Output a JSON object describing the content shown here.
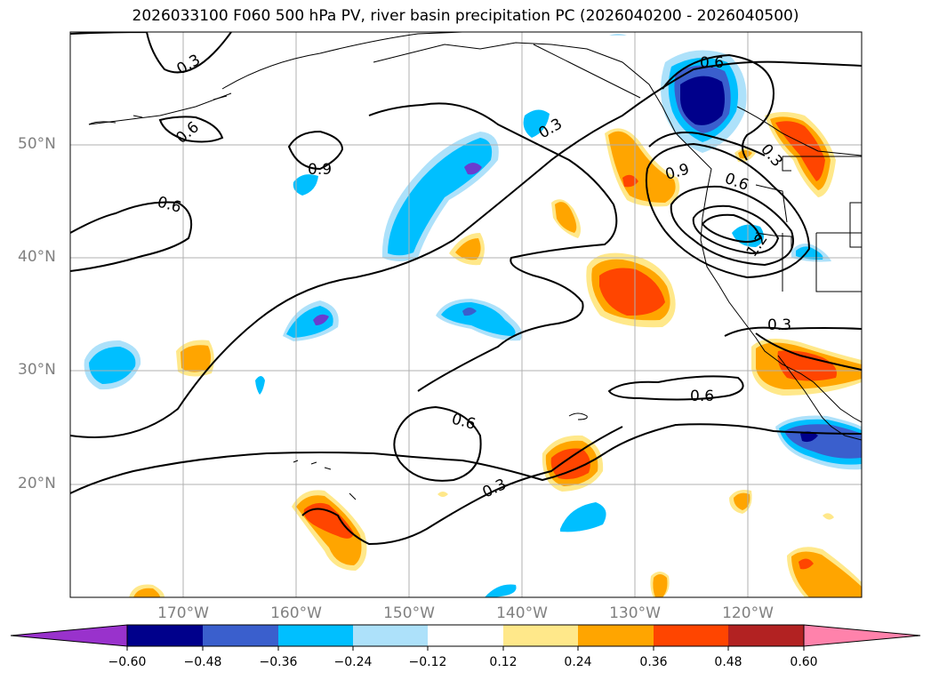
{
  "title": "2026033100 F060 500 hPa PV, river basin precipitation PC (2026040200 - 2026040500)",
  "lat_labels": [
    "50°N",
    "40°N",
    "30°N",
    "20°N"
  ],
  "lon_labels": [
    "170°W",
    "160°W",
    "150°W",
    "140°W",
    "130°W",
    "120°W"
  ],
  "contour_labels": [
    "0.3",
    "0.6",
    "0.6",
    "0.9",
    "0.3",
    "0.6",
    "0.9",
    "0.6",
    "1.2",
    "0.3",
    "0.6",
    "0.6",
    "0.3",
    "0.3"
  ],
  "colorbar": {
    "ticks": [
      "−0.60",
      "−0.48",
      "−0.36",
      "−0.24",
      "−0.12",
      "0.12",
      "0.24",
      "0.36",
      "0.48",
      "0.60"
    ],
    "colors": [
      "#9932CC",
      "#00008B",
      "#3A5FCD",
      "#00BFFF",
      "#ADE1FA",
      "#FFFFFF",
      "#FFE88A",
      "#FFA500",
      "#FF4500",
      "#B22222",
      "#FF82AB"
    ]
  },
  "fill_colors": {
    "neg_light": "#ADE1FA",
    "neg_mid": "#00BFFF",
    "neg_strong": "#3A5FCD",
    "neg_max": "#00008B",
    "neg_extreme": "#6A3CCF",
    "pos_light": "#FFE88A",
    "pos_mid": "#FFA500",
    "pos_strong": "#FF4500",
    "pos_max": "#B22222"
  }
}
